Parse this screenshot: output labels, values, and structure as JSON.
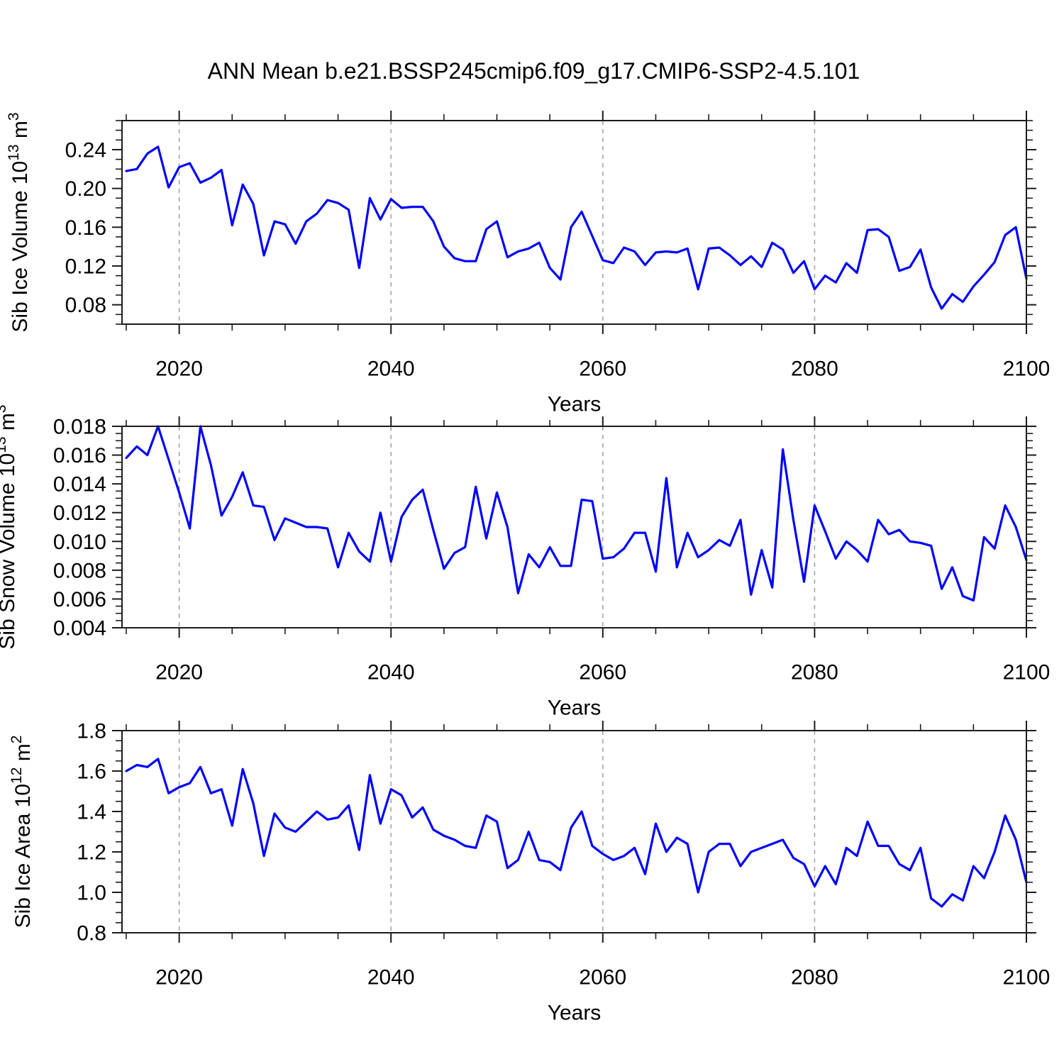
{
  "title": "ANN Mean b.e21.BSSP245cmip6.f09_g17.CMIP6-SSP2-4.5.101",
  "line_color": "#0000ff",
  "grid_color": "#a6a6a6",
  "axis_color": "#1c1c1c",
  "chart_data": [
    {
      "type": "line",
      "title": "",
      "xlabel": "Years",
      "ylabel": "Sib Ice Volume 10^13 m^3",
      "legend": "none",
      "grid": "vertical-dashed-at-x-majors",
      "x_start": 2015,
      "x_step": 1,
      "xlim": [
        2014.6,
        2100
      ],
      "ylim": [
        0.06,
        0.27
      ],
      "xticks": [
        2020,
        2040,
        2060,
        2080,
        2100
      ],
      "xtick_labels": [
        "2020",
        "2040",
        "2060",
        "2080",
        "2100"
      ],
      "x_minor_step": 5,
      "yticks": [
        0.08,
        0.12,
        0.16,
        0.2,
        0.24
      ],
      "ytick_labels": [
        "0.08",
        "0.12",
        "0.16",
        "0.20",
        "0.24"
      ],
      "y_minor_step": 0.01,
      "values": [
        0.218,
        0.22,
        0.236,
        0.243,
        0.201,
        0.222,
        0.226,
        0.206,
        0.211,
        0.219,
        0.162,
        0.204,
        0.184,
        0.131,
        0.166,
        0.163,
        0.143,
        0.166,
        0.174,
        0.188,
        0.185,
        0.178,
        0.118,
        0.19,
        0.168,
        0.189,
        0.18,
        0.181,
        0.181,
        0.166,
        0.14,
        0.128,
        0.125,
        0.125,
        0.158,
        0.166,
        0.129,
        0.135,
        0.138,
        0.144,
        0.118,
        0.106,
        0.16,
        0.176,
        0.151,
        0.126,
        0.123,
        0.139,
        0.135,
        0.121,
        0.134,
        0.135,
        0.134,
        0.138,
        0.096,
        0.138,
        0.139,
        0.131,
        0.121,
        0.13,
        0.119,
        0.144,
        0.137,
        0.113,
        0.125,
        0.096,
        0.11,
        0.103,
        0.123,
        0.113,
        0.157,
        0.158,
        0.15,
        0.115,
        0.119,
        0.137,
        0.098,
        0.076,
        0.091,
        0.083,
        0.099,
        0.111,
        0.124,
        0.152,
        0.16,
        0.107
      ]
    },
    {
      "type": "line",
      "title": "",
      "xlabel": "Years",
      "ylabel": "Sib Snow Volume 10^13 m^3",
      "legend": "none",
      "grid": "vertical-dashed-at-x-majors",
      "x_start": 2015,
      "x_step": 1,
      "xlim": [
        2014.6,
        2100
      ],
      "ylim": [
        0.004,
        0.018
      ],
      "xticks": [
        2020,
        2040,
        2060,
        2080,
        2100
      ],
      "xtick_labels": [
        "2020",
        "2040",
        "2060",
        "2080",
        "2100"
      ],
      "x_minor_step": 5,
      "yticks": [
        0.004,
        0.006,
        0.008,
        0.01,
        0.012,
        0.014,
        0.016,
        0.018
      ],
      "ytick_labels": [
        "0.004",
        "0.006",
        "0.008",
        "0.010",
        "0.012",
        "0.014",
        "0.016",
        "0.018"
      ],
      "y_minor_step": 0.0005,
      "values": [
        0.0158,
        0.0166,
        0.016,
        0.018,
        0.0157,
        0.0134,
        0.0109,
        0.018,
        0.0153,
        0.0118,
        0.0131,
        0.0148,
        0.0125,
        0.0124,
        0.0101,
        0.0116,
        0.0113,
        0.011,
        0.011,
        0.0109,
        0.0082,
        0.0106,
        0.0093,
        0.0086,
        0.012,
        0.0086,
        0.0117,
        0.0129,
        0.0136,
        0.0108,
        0.0081,
        0.0092,
        0.0096,
        0.0138,
        0.0102,
        0.0134,
        0.011,
        0.0064,
        0.0091,
        0.0082,
        0.0096,
        0.0083,
        0.0083,
        0.0129,
        0.0128,
        0.0088,
        0.0089,
        0.0095,
        0.0106,
        0.0106,
        0.0079,
        0.0144,
        0.0082,
        0.0106,
        0.0089,
        0.0094,
        0.0101,
        0.0097,
        0.0115,
        0.0063,
        0.0094,
        0.0068,
        0.0164,
        0.0115,
        0.0072,
        0.0125,
        0.0107,
        0.0088,
        0.01,
        0.0094,
        0.0086,
        0.0115,
        0.0105,
        0.0108,
        0.01,
        0.0099,
        0.0097,
        0.0067,
        0.0082,
        0.0062,
        0.0059,
        0.0103,
        0.0095,
        0.0125,
        0.011,
        0.0087
      ]
    },
    {
      "type": "line",
      "title": "",
      "xlabel": "Years",
      "ylabel": "Sib Ice Area 10^12 m^2",
      "legend": "none",
      "grid": "vertical-dashed-at-x-majors",
      "x_start": 2015,
      "x_step": 1,
      "xlim": [
        2014.6,
        2100
      ],
      "ylim": [
        0.8,
        1.8
      ],
      "xticks": [
        2020,
        2040,
        2060,
        2080,
        2100
      ],
      "xtick_labels": [
        "2020",
        "2040",
        "2060",
        "2080",
        "2100"
      ],
      "x_minor_step": 5,
      "yticks": [
        0.8,
        1.0,
        1.2,
        1.4,
        1.6,
        1.8
      ],
      "ytick_labels": [
        "0.8",
        "1.0",
        "1.2",
        "1.4",
        "1.6",
        "1.8"
      ],
      "y_minor_step": 0.05,
      "values": [
        1.6,
        1.63,
        1.62,
        1.66,
        1.49,
        1.52,
        1.54,
        1.62,
        1.49,
        1.51,
        1.33,
        1.61,
        1.44,
        1.18,
        1.39,
        1.32,
        1.3,
        1.35,
        1.4,
        1.36,
        1.37,
        1.43,
        1.21,
        1.58,
        1.34,
        1.51,
        1.48,
        1.37,
        1.42,
        1.31,
        1.28,
        1.26,
        1.23,
        1.22,
        1.38,
        1.35,
        1.12,
        1.16,
        1.3,
        1.16,
        1.15,
        1.11,
        1.32,
        1.4,
        1.23,
        1.19,
        1.16,
        1.18,
        1.22,
        1.09,
        1.34,
        1.2,
        1.27,
        1.24,
        1.0,
        1.2,
        1.24,
        1.24,
        1.13,
        1.2,
        1.22,
        1.24,
        1.26,
        1.17,
        1.14,
        1.03,
        1.13,
        1.04,
        1.22,
        1.18,
        1.35,
        1.23,
        1.23,
        1.14,
        1.11,
        1.22,
        0.97,
        0.93,
        0.99,
        0.96,
        1.13,
        1.07,
        1.2,
        1.38,
        1.26,
        1.05
      ]
    }
  ]
}
